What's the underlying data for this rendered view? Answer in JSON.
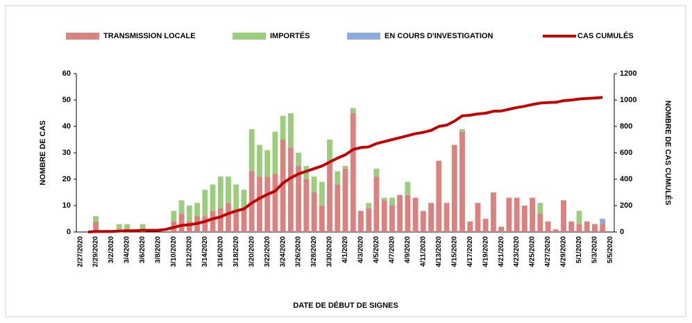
{
  "chart_data": {
    "type": "bar",
    "x_label": "DATE DE DÉBUT DE SIGNES",
    "y_label": "NOMBRE  DE CAS",
    "y2_label": "NOMBRE DE CAS CUMULÉS",
    "stacked": true,
    "legend": "top",
    "categories": [
      "2/27/2020",
      null,
      "2/29/2020",
      null,
      "3/2/2020",
      null,
      "3/4/2020",
      null,
      "3/6/2020",
      null,
      "3/8/2020",
      null,
      "3/10/2020",
      null,
      "3/12/2020",
      null,
      "3/14/2020",
      null,
      "3/16/2020",
      null,
      "3/18/2020",
      null,
      "3/20/2020",
      null,
      "3/22/2020",
      null,
      "3/24/2020",
      null,
      "3/26/2020",
      null,
      "3/28/2020",
      null,
      "3/30/2020",
      null,
      "4/1/2020",
      null,
      "4/3/2020",
      null,
      "4/5/2020",
      null,
      "4/7/2020",
      null,
      "4/9/2020",
      null,
      "4/11/2020",
      null,
      "4/13/2020",
      null,
      "4/15/2020",
      null,
      "4/17/2020",
      null,
      "4/19/2020",
      null,
      "4/21/2020",
      null,
      "4/23/2020",
      null,
      "4/25/2020",
      null,
      "4/27/2020",
      null,
      "4/29/2020",
      null,
      "5/1/2020",
      null,
      "5/3/2020",
      null,
      "5/5/2020"
    ],
    "series": [
      {
        "name": "TRANSMISSION LOCALE",
        "color": "#d9827f",
        "type": "bar",
        "values": [
          0,
          0,
          4,
          0,
          0,
          1,
          1,
          0,
          1,
          0,
          0,
          0,
          4,
          7,
          4,
          6,
          6,
          8,
          9,
          11,
          8,
          9,
          23,
          21,
          21,
          22,
          35,
          32,
          25,
          20,
          15,
          10,
          26,
          18,
          24,
          45,
          8,
          9,
          21,
          12,
          10,
          14,
          14,
          13,
          8,
          11,
          27,
          11,
          33,
          38,
          4,
          11,
          5,
          15,
          2,
          13,
          13,
          10,
          13,
          7,
          4,
          1,
          12,
          4,
          3,
          4,
          3,
          3,
          0
        ]
      },
      {
        "name": "IMPORTÉS",
        "color": "#9ccc7e",
        "type": "bar",
        "values": [
          0,
          0,
          2,
          0,
          0,
          2,
          2,
          0,
          2,
          0,
          0,
          0,
          4,
          5,
          6,
          5,
          10,
          10,
          12,
          10,
          10,
          7,
          16,
          12,
          10,
          16,
          9,
          13,
          5,
          5,
          6,
          9,
          9,
          5,
          1,
          2,
          0,
          2,
          3,
          1,
          3,
          0,
          5,
          0,
          0,
          0,
          0,
          0,
          0,
          1,
          0,
          0,
          0,
          0,
          0,
          0,
          0,
          0,
          0,
          4,
          0,
          0,
          0,
          0,
          5,
          0,
          0,
          0,
          0
        ]
      },
      {
        "name": "EN COURS D'INVESTIGATION",
        "color": "#8faadc",
        "type": "bar",
        "values": [
          0,
          0,
          0,
          0,
          0,
          0,
          0,
          0,
          0,
          0,
          0,
          0,
          0,
          0,
          0,
          0,
          0,
          0,
          0,
          0,
          0,
          0,
          0,
          0,
          0,
          0,
          0,
          0,
          0,
          0,
          0,
          0,
          0,
          0,
          0,
          0,
          0,
          0,
          0,
          0,
          0,
          0,
          0,
          0,
          0,
          0,
          0,
          0,
          0,
          0,
          0,
          0,
          0,
          0,
          0,
          0,
          0,
          0,
          0,
          0,
          0,
          0,
          0,
          0,
          0,
          0,
          0,
          2,
          0
        ]
      },
      {
        "name": "CAS CUMULÉS",
        "color": "#c00000",
        "type": "line",
        "axis": "y2",
        "values": [
          null,
          0,
          4,
          4,
          4,
          7,
          10,
          10,
          13,
          13,
          13,
          20,
          35,
          50,
          55,
          65,
          80,
          100,
          115,
          140,
          160,
          175,
          220,
          255,
          285,
          310,
          370,
          410,
          440,
          460,
          480,
          500,
          530,
          560,
          585,
          625,
          640,
          645,
          670,
          685,
          700,
          715,
          730,
          745,
          755,
          770,
          800,
          810,
          840,
          880,
          885,
          895,
          900,
          915,
          917,
          930,
          943,
          953,
          966,
          977,
          981,
          983,
          995,
          1000,
          1008,
          1012,
          1015,
          1020,
          null
        ]
      }
    ],
    "ylim": [
      0,
      60
    ],
    "yticks": [
      0,
      10,
      20,
      30,
      40,
      50,
      60
    ],
    "y2lim": [
      0,
      1200
    ],
    "y2ticks": [
      0,
      200,
      400,
      600,
      800,
      1000,
      1200
    ],
    "grid": false
  }
}
